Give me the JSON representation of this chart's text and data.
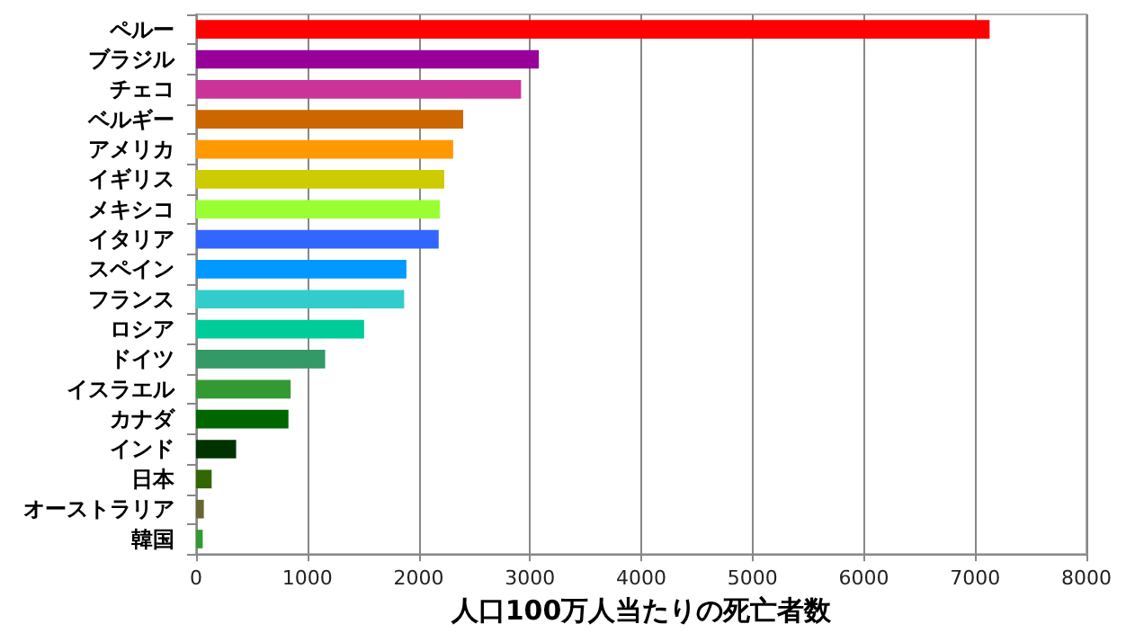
{
  "chart_data": {
    "type": "bar",
    "orientation": "horizontal",
    "xlabel": "人口100万人当たりの死亡者数",
    "categories": [
      "ペルー",
      "ブラジル",
      "チェコ",
      "ベルギー",
      "アメリカ",
      "イギリス",
      "メキシコ",
      "イタリア",
      "スペイン",
      "フランス",
      "ロシア",
      "ドイツ",
      "イスラエル",
      "カナダ",
      "インド",
      "日本",
      "オーストラリア",
      "韓国"
    ],
    "values": [
      7130,
      3080,
      2920,
      2400,
      2310,
      2230,
      2190,
      2180,
      1890,
      1870,
      1510,
      1160,
      850,
      830,
      360,
      140,
      70,
      60
    ],
    "colors": [
      "#ff0000",
      "#990099",
      "#cc3399",
      "#cc6600",
      "#ff9900",
      "#cccc00",
      "#99ff33",
      "#3366ff",
      "#0099ff",
      "#33cccc",
      "#00cc99",
      "#339966",
      "#339933",
      "#006600",
      "#003300",
      "#336600",
      "#666633",
      "#339933"
    ],
    "xlim": [
      0,
      8000
    ],
    "xticks": [
      0,
      1000,
      2000,
      3000,
      4000,
      5000,
      6000,
      7000,
      8000
    ],
    "grid": "x"
  }
}
